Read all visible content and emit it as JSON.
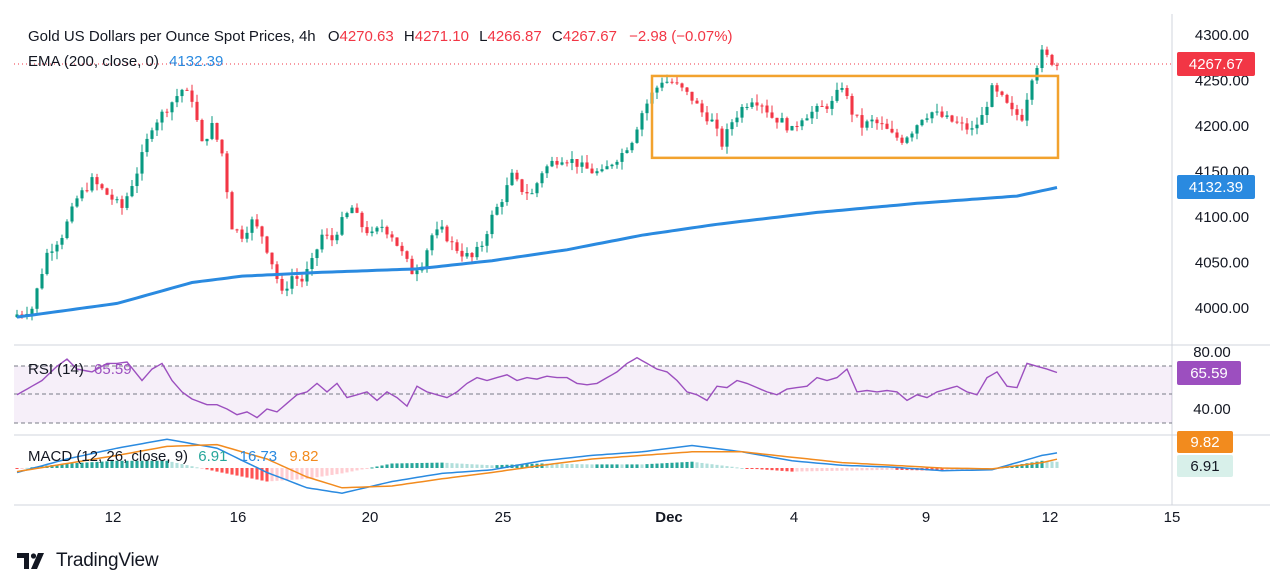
{
  "header": {
    "title": "Gold US Dollars per Ounce Spot Prices, 4h",
    "open_label": "O",
    "open": "4270.63",
    "high_label": "H",
    "high": "4271.10",
    "low_label": "L",
    "low": "4266.87",
    "close_label": "C",
    "close": "4267.67",
    "change": "−2.98 (−0.07%)",
    "ema_label": "EMA (200, close, 0)",
    "ema_value": "4132.39"
  },
  "rsi_header": {
    "label": "RSI (14)",
    "value": "65.59"
  },
  "macd_header": {
    "label": "MACD (12, 26, close, 9)",
    "hist": "6.91",
    "macd": "16.73",
    "signal": "9.82"
  },
  "price_badge": "4267.67",
  "ema_badge": "4132.39",
  "rsi_badge": "65.59",
  "macd_badges": {
    "signal": "9.82",
    "hist": "6.91"
  },
  "brand": "TradingView",
  "colors": {
    "up": "#089981",
    "down": "#f23645",
    "ema": "#2a8ae0",
    "rsi": "#9c4fbf",
    "macd": "#2a8ae0",
    "signal": "#f28b1e",
    "box": "#f2a22e",
    "text": "#131722"
  },
  "chart_data": {
    "type": "candlestick",
    "price_axis": {
      "ticks": [
        "4300.00",
        "4250.00",
        "4200.00",
        "4150.00",
        "4100.00",
        "4050.00",
        "4000.00"
      ],
      "range": [
        3970,
        4305
      ]
    },
    "rsi_axis": {
      "ticks": [
        "80.00",
        "40.00"
      ],
      "range": [
        30,
        85
      ],
      "bands": [
        70,
        50,
        30
      ]
    },
    "x_axis": {
      "ticks": [
        "12",
        "16",
        "20",
        "25",
        "Dec",
        "4",
        "9",
        "12",
        "15"
      ]
    },
    "consolidation_box": {
      "price_top": 4255,
      "price_bottom": 4165,
      "from_label": "Dec",
      "to_label": "12"
    },
    "price_anchors": [
      [
        0,
        3993
      ],
      [
        3,
        4000
      ],
      [
        6,
        4060
      ],
      [
        9,
        4080
      ],
      [
        12,
        4120
      ],
      [
        15,
        4140
      ],
      [
        18,
        4125
      ],
      [
        21,
        4110
      ],
      [
        24,
        4150
      ],
      [
        27,
        4200
      ],
      [
        30,
        4220
      ],
      [
        33,
        4240
      ],
      [
        35,
        4230
      ],
      [
        37,
        4180
      ],
      [
        39,
        4200
      ],
      [
        41,
        4170
      ],
      [
        43,
        4090
      ],
      [
        45,
        4080
      ],
      [
        47,
        4095
      ],
      [
        49,
        4080
      ],
      [
        51,
        4050
      ],
      [
        53,
        4015
      ],
      [
        55,
        4035
      ],
      [
        57,
        4030
      ],
      [
        59,
        4050
      ],
      [
        61,
        4080
      ],
      [
        63,
        4075
      ],
      [
        65,
        4095
      ],
      [
        67,
        4110
      ],
      [
        69,
        4090
      ],
      [
        71,
        4080
      ],
      [
        73,
        4090
      ],
      [
        75,
        4080
      ],
      [
        77,
        4060
      ],
      [
        79,
        4040
      ],
      [
        81,
        4050
      ],
      [
        83,
        4080
      ],
      [
        85,
        4085
      ],
      [
        87,
        4070
      ],
      [
        89,
        4060
      ],
      [
        91,
        4055
      ],
      [
        93,
        4070
      ],
      [
        95,
        4100
      ],
      [
        97,
        4120
      ],
      [
        99,
        4145
      ],
      [
        101,
        4130
      ],
      [
        103,
        4125
      ],
      [
        105,
        4150
      ],
      [
        107,
        4160
      ],
      [
        109,
        4165
      ],
      [
        111,
        4162
      ],
      [
        113,
        4155
      ],
      [
        115,
        4150
      ],
      [
        117,
        4148
      ],
      [
        119,
        4160
      ],
      [
        121,
        4170
      ],
      [
        123,
        4185
      ],
      [
        125,
        4215
      ],
      [
        127,
        4235
      ],
      [
        129,
        4250
      ],
      [
        131,
        4248
      ],
      [
        133,
        4240
      ],
      [
        135,
        4230
      ],
      [
        137,
        4215
      ],
      [
        139,
        4205
      ],
      [
        141,
        4180
      ],
      [
        143,
        4205
      ],
      [
        145,
        4220
      ],
      [
        147,
        4230
      ],
      [
        149,
        4225
      ],
      [
        151,
        4210
      ],
      [
        153,
        4205
      ],
      [
        155,
        4195
      ],
      [
        157,
        4210
      ],
      [
        159,
        4215
      ],
      [
        161,
        4220
      ],
      [
        163,
        4225
      ],
      [
        165,
        4245
      ],
      [
        167,
        4215
      ],
      [
        169,
        4200
      ],
      [
        171,
        4205
      ],
      [
        173,
        4200
      ],
      [
        175,
        4190
      ],
      [
        177,
        4185
      ],
      [
        179,
        4195
      ],
      [
        181,
        4210
      ],
      [
        183,
        4215
      ],
      [
        185,
        4210
      ],
      [
        187,
        4205
      ],
      [
        189,
        4200
      ],
      [
        191,
        4195
      ],
      [
        193,
        4210
      ],
      [
        195,
        4240
      ],
      [
        197,
        4230
      ],
      [
        199,
        4215
      ],
      [
        201,
        4210
      ],
      [
        203,
        4255
      ],
      [
        205,
        4280
      ],
      [
        207,
        4271
      ],
      [
        208,
        4267.67
      ]
    ],
    "ema_anchors": [
      [
        0,
        3990
      ],
      [
        20,
        4005
      ],
      [
        35,
        4028
      ],
      [
        45,
        4035
      ],
      [
        60,
        4039
      ],
      [
        80,
        4043
      ],
      [
        95,
        4052
      ],
      [
        110,
        4064
      ],
      [
        125,
        4080
      ],
      [
        140,
        4092
      ],
      [
        160,
        4105
      ],
      [
        180,
        4115
      ],
      [
        200,
        4123
      ],
      [
        208,
        4132.39
      ]
    ],
    "rsi_anchors": [
      [
        0,
        50
      ],
      [
        5,
        60
      ],
      [
        8,
        70
      ],
      [
        10,
        75
      ],
      [
        12,
        68
      ],
      [
        15,
        66
      ],
      [
        18,
        72
      ],
      [
        20,
        72
      ],
      [
        22,
        73
      ],
      [
        25,
        60
      ],
      [
        27,
        68
      ],
      [
        29,
        72
      ],
      [
        31,
        60
      ],
      [
        33,
        52
      ],
      [
        35,
        47
      ],
      [
        38,
        43
      ],
      [
        40,
        43
      ],
      [
        42,
        40
      ],
      [
        44,
        36
      ],
      [
        46,
        38
      ],
      [
        48,
        34
      ],
      [
        50,
        40
      ],
      [
        52,
        38
      ],
      [
        54,
        44
      ],
      [
        56,
        50
      ],
      [
        58,
        52
      ],
      [
        60,
        58
      ],
      [
        62,
        52
      ],
      [
        64,
        58
      ],
      [
        66,
        48
      ],
      [
        68,
        50
      ],
      [
        70,
        52
      ],
      [
        72,
        46
      ],
      [
        74,
        52
      ],
      [
        76,
        48
      ],
      [
        78,
        42
      ],
      [
        80,
        56
      ],
      [
        82,
        52
      ],
      [
        84,
        50
      ],
      [
        86,
        48
      ],
      [
        88,
        52
      ],
      [
        90,
        58
      ],
      [
        92,
        62
      ],
      [
        94,
        60
      ],
      [
        96,
        62
      ],
      [
        98,
        64
      ],
      [
        100,
        60
      ],
      [
        102,
        62
      ],
      [
        104,
        61
      ],
      [
        106,
        63
      ],
      [
        108,
        62
      ],
      [
        110,
        62
      ],
      [
        112,
        58
      ],
      [
        114,
        57
      ],
      [
        116,
        58
      ],
      [
        118,
        62
      ],
      [
        120,
        66
      ],
      [
        122,
        72
      ],
      [
        124,
        76
      ],
      [
        126,
        72
      ],
      [
        128,
        68
      ],
      [
        130,
        66
      ],
      [
        132,
        60
      ],
      [
        134,
        52
      ],
      [
        136,
        50
      ],
      [
        138,
        46
      ],
      [
        140,
        56
      ],
      [
        142,
        55
      ],
      [
        144,
        60
      ],
      [
        146,
        58
      ],
      [
        148,
        55
      ],
      [
        150,
        52
      ],
      [
        152,
        50
      ],
      [
        154,
        54
      ],
      [
        156,
        55
      ],
      [
        158,
        56
      ],
      [
        160,
        62
      ],
      [
        162,
        60
      ],
      [
        164,
        62
      ],
      [
        166,
        68
      ],
      [
        168,
        52
      ],
      [
        170,
        53
      ],
      [
        172,
        52
      ],
      [
        174,
        53
      ],
      [
        176,
        52
      ],
      [
        178,
        46
      ],
      [
        180,
        50
      ],
      [
        182,
        48
      ],
      [
        184,
        52
      ],
      [
        186,
        54
      ],
      [
        188,
        56
      ],
      [
        190,
        52
      ],
      [
        192,
        50
      ],
      [
        194,
        62
      ],
      [
        196,
        66
      ],
      [
        198,
        56
      ],
      [
        200,
        55
      ],
      [
        202,
        72
      ],
      [
        204,
        70
      ],
      [
        206,
        68
      ],
      [
        208,
        65.59
      ]
    ],
    "macd_anchors": [
      [
        0,
        -5
      ],
      [
        10,
        10
      ],
      [
        20,
        22
      ],
      [
        30,
        32
      ],
      [
        40,
        22
      ],
      [
        50,
        -5
      ],
      [
        58,
        -22
      ],
      [
        65,
        -28
      ],
      [
        75,
        -15
      ],
      [
        85,
        -6
      ],
      [
        95,
        -2
      ],
      [
        105,
        8
      ],
      [
        115,
        14
      ],
      [
        125,
        18
      ],
      [
        135,
        25
      ],
      [
        145,
        18
      ],
      [
        155,
        8
      ],
      [
        165,
        3
      ],
      [
        175,
        1
      ],
      [
        185,
        -3
      ],
      [
        195,
        -2
      ],
      [
        205,
        14
      ],
      [
        208,
        16.73
      ]
    ],
    "signal_anchors": [
      [
        0,
        -4
      ],
      [
        10,
        5
      ],
      [
        20,
        14
      ],
      [
        30,
        24
      ],
      [
        40,
        26
      ],
      [
        50,
        10
      ],
      [
        58,
        -10
      ],
      [
        65,
        -22
      ],
      [
        75,
        -20
      ],
      [
        85,
        -12
      ],
      [
        95,
        -5
      ],
      [
        105,
        3
      ],
      [
        115,
        10
      ],
      [
        125,
        14
      ],
      [
        135,
        18
      ],
      [
        145,
        18
      ],
      [
        155,
        12
      ],
      [
        165,
        6
      ],
      [
        175,
        3
      ],
      [
        185,
        0
      ],
      [
        195,
        -1
      ],
      [
        205,
        6
      ],
      [
        208,
        9.82
      ]
    ]
  }
}
